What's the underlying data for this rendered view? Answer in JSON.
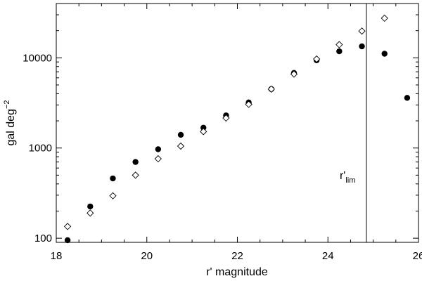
{
  "chart_data": {
    "type": "scatter",
    "title": "",
    "xlabel": "r' magnitude",
    "ylabel": "gal deg",
    "ylabel_superscript": "−2",
    "xlim": [
      18,
      26
    ],
    "ylim": [
      90,
      40000
    ],
    "y_scale": "log",
    "grid": false,
    "x_ticks": [
      18,
      20,
      22,
      24,
      26
    ],
    "x_tick_labels": [
      "18",
      "20",
      "22",
      "24",
      "26"
    ],
    "y_ticks": [
      100,
      1000,
      10000
    ],
    "y_tick_labels": [
      "100",
      "1000",
      "10000"
    ],
    "series": [
      {
        "marker": "filled-circle",
        "x": [
          18.25,
          18.75,
          19.25,
          19.75,
          20.25,
          20.75,
          21.25,
          21.75,
          22.25,
          22.75,
          23.25,
          23.75,
          24.25,
          24.75,
          25.25,
          25.75
        ],
        "y": [
          95,
          225,
          460,
          700,
          970,
          1400,
          1680,
          2300,
          3200,
          4500,
          6800,
          9400,
          11800,
          13400,
          11100,
          3600
        ]
      },
      {
        "marker": "open-diamond",
        "x": [
          18.25,
          18.75,
          19.25,
          19.75,
          20.25,
          20.75,
          21.25,
          21.75,
          22.25,
          22.75,
          23.25,
          23.75,
          24.25,
          24.75,
          25.25
        ],
        "y": [
          135,
          190,
          295,
          500,
          760,
          1050,
          1520,
          2150,
          3050,
          4500,
          6600,
          9700,
          14000,
          19800,
          27500
        ]
      }
    ],
    "annotations": [
      {
        "type": "vertical-line",
        "x": 24.85,
        "label": "r'",
        "label_subscript": "lim"
      }
    ]
  }
}
